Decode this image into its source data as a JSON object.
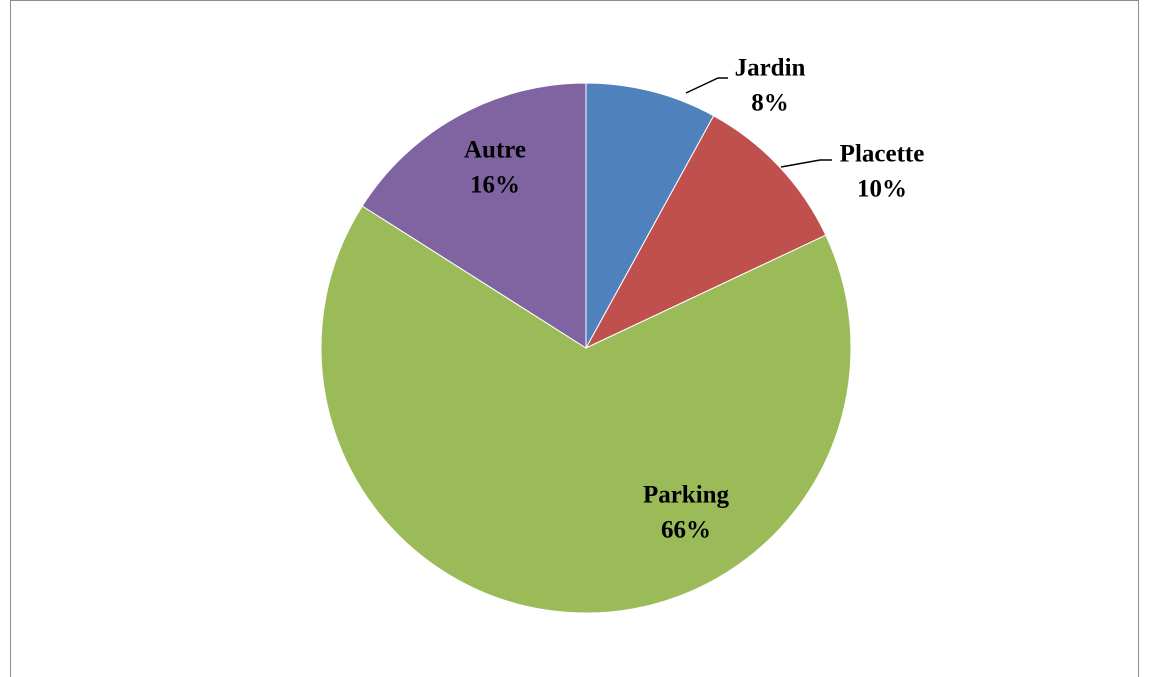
{
  "chart_data": {
    "type": "pie",
    "categories": [
      "Jardin",
      "Placette",
      "Parking",
      "Autre"
    ],
    "values": [
      8,
      10,
      66,
      16
    ],
    "value_labels": [
      "8%",
      "10%",
      "66%",
      "16%"
    ],
    "colors": [
      "#4f81bd",
      "#c0504d",
      "#9bbb59",
      "#8064a2"
    ]
  }
}
